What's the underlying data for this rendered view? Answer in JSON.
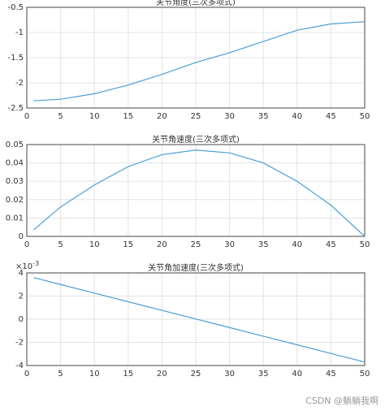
{
  "chart_data": [
    {
      "type": "line",
      "title": "关节角度(三次多项式)",
      "x": [
        1,
        5,
        10,
        15,
        20,
        25,
        30,
        35,
        40,
        45,
        50
      ],
      "series": [
        {
          "color": "#4a9fd6",
          "values": [
            -2.356,
            -2.326,
            -2.216,
            -2.044,
            -1.831,
            -1.595,
            -1.403,
            -1.178,
            -0.955,
            -0.831,
            -0.785
          ]
        }
      ],
      "xlim": [
        0,
        50
      ],
      "xticks": [
        0,
        5,
        10,
        15,
        20,
        25,
        30,
        35,
        40,
        45,
        50
      ],
      "ylim": [
        -2.5,
        -0.5
      ],
      "yticks": [
        -2.5,
        -2,
        -1.5,
        -1,
        -0.5
      ],
      "grid": true
    },
    {
      "type": "line",
      "title": "关节角速度(三次多项式)",
      "x": [
        1,
        5,
        10,
        15,
        20,
        25,
        30,
        35,
        40,
        45,
        50
      ],
      "series": [
        {
          "color": "#4a9fd6",
          "values": [
            0.0035,
            0.016,
            0.028,
            0.038,
            0.0445,
            0.047,
            0.0455,
            0.04,
            0.03,
            0.017,
            0
          ]
        }
      ],
      "xlim": [
        0,
        50
      ],
      "xticks": [
        0,
        5,
        10,
        15,
        20,
        25,
        30,
        35,
        40,
        45,
        50
      ],
      "ylim": [
        0,
        0.05
      ],
      "yticks": [
        0,
        0.01,
        0.02,
        0.03,
        0.04,
        0.05
      ],
      "grid": true
    },
    {
      "type": "line",
      "title": "关节角加速度(三次多项式)",
      "x": [
        1,
        5,
        10,
        15,
        20,
        25,
        30,
        35,
        40,
        45,
        50
      ],
      "series": [
        {
          "color": "#4a9fd6",
          "values": [
            0.0036,
            0.003,
            0.00226,
            0.00151,
            0.00077,
            2e-05,
            -0.00072,
            -0.00147,
            -0.00221,
            -0.00296,
            -0.0037
          ]
        }
      ],
      "xlim": [
        0,
        50
      ],
      "xticks": [
        0,
        5,
        10,
        15,
        20,
        25,
        30,
        35,
        40,
        45,
        50
      ],
      "ylim": [
        -0.004,
        0.004
      ],
      "yticks": [
        {
          "value": -0.004,
          "label": "-4"
        },
        {
          "value": -0.002,
          "label": "-2"
        },
        {
          "value": 0,
          "label": "0"
        },
        {
          "value": 0.002,
          "label": "2"
        },
        {
          "value": 0.004,
          "label": "4"
        }
      ],
      "y_exponent_base": "×10",
      "y_exponent": "-3",
      "grid": true
    }
  ],
  "watermark": "CSDN @躺躺我啊"
}
